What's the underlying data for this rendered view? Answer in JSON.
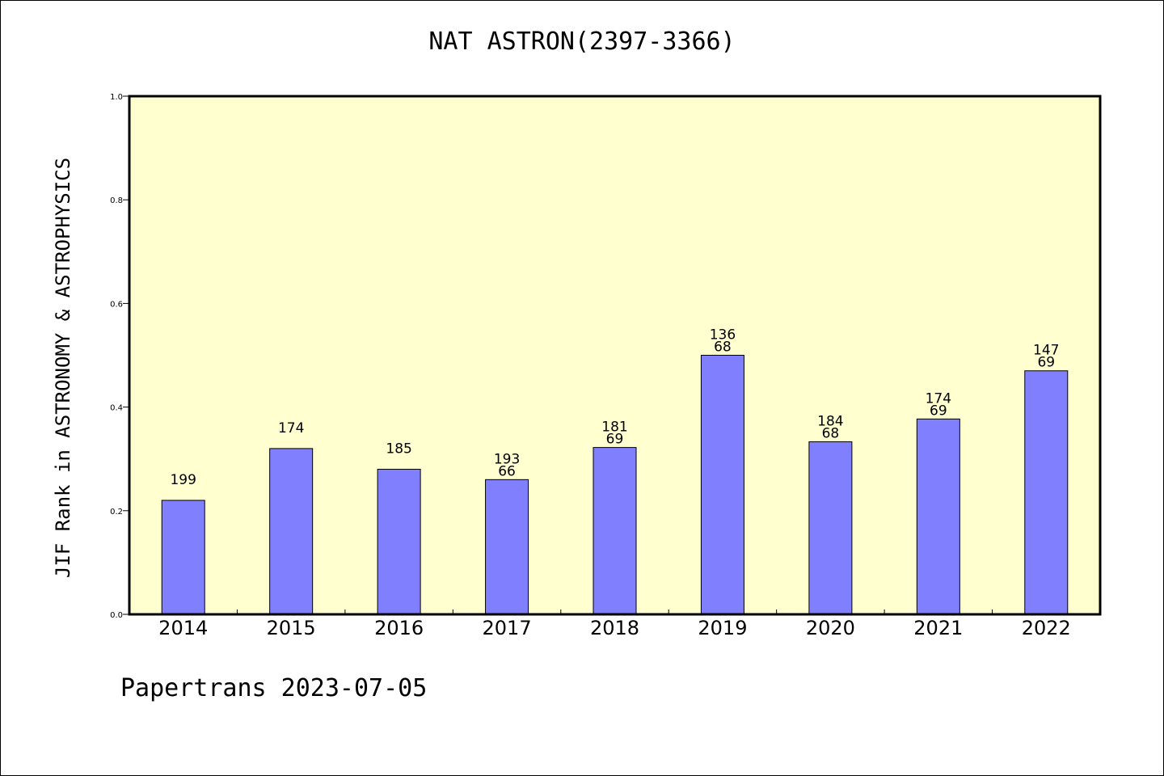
{
  "colors": {
    "plot_background": "#ffffd0",
    "bar_fill": "#8080ff",
    "bar_stroke": "#000000",
    "axis": "#000000"
  },
  "footer": "Papertrans 2023-07-05",
  "chart_data": {
    "type": "bar",
    "title": "NAT ASTRON(2397-3366)",
    "xlabel": "",
    "ylabel": "JIF Rank in ASTRONOMY & ASTROPHYSICS",
    "ylim": [
      0,
      1.0
    ],
    "yticks": [
      "0.0",
      "0.2",
      "0.4",
      "0.6",
      "0.8",
      "1.0"
    ],
    "grid": false,
    "categories": [
      "2014",
      "2015",
      "2016",
      "2017",
      "2018",
      "2019",
      "2020",
      "2021",
      "2022"
    ],
    "values": [
      0.22,
      0.32,
      0.28,
      0.26,
      0.322,
      0.5,
      0.333,
      0.377,
      0.47
    ],
    "annotations": [
      [
        "199"
      ],
      [
        "174"
      ],
      [
        "185"
      ],
      [
        "193",
        "66"
      ],
      [
        "181",
        "69"
      ],
      [
        "136",
        "68"
      ],
      [
        "184",
        "68"
      ],
      [
        "174",
        "69"
      ],
      [
        "147",
        "69"
      ]
    ]
  }
}
